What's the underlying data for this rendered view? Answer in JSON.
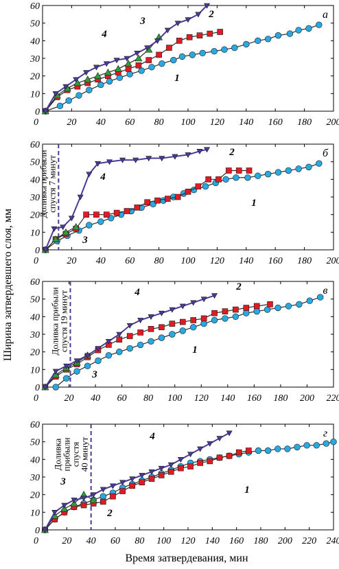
{
  "figure": {
    "ylabel": "Ширина затвердевшего слоя, мм",
    "xlabel": "Время затвердевания, мин"
  },
  "colors": {
    "s1": "#29a9e1",
    "s2": "#e01b24",
    "s3": "#2e9e3a",
    "s4": "#4a3a9a",
    "dash": "#4a3a9a"
  },
  "chart_data": [
    {
      "type": "line",
      "panel": "а",
      "xlim": [
        0,
        200
      ],
      "ylim": [
        0,
        60
      ],
      "xticks": [
        0,
        20,
        40,
        60,
        80,
        100,
        120,
        140,
        160,
        180,
        200
      ],
      "yticks": [
        0,
        10,
        20,
        30,
        40,
        50,
        60
      ],
      "series": [
        {
          "name": "1",
          "x": [
            2,
            12,
            18,
            25,
            32,
            40,
            46,
            53,
            60,
            68,
            75,
            82,
            90,
            96,
            103,
            110,
            118,
            125,
            132,
            140,
            148,
            155,
            162,
            170,
            176,
            183,
            190
          ],
          "y": [
            0,
            3,
            6,
            9,
            12,
            15,
            17,
            19,
            21,
            23,
            25,
            27,
            29,
            31,
            32,
            33,
            34,
            35,
            36,
            38,
            40,
            41,
            43,
            44,
            46,
            47,
            49
          ]
        },
        {
          "name": "2",
          "x": [
            2,
            10,
            17,
            24,
            31,
            38,
            45,
            52,
            59,
            66,
            73,
            80,
            87,
            94,
            101,
            108,
            115,
            122
          ],
          "y": [
            0,
            8,
            12,
            14,
            16,
            18,
            20,
            22,
            24,
            26,
            29,
            32,
            36,
            40,
            42,
            43,
            44,
            45
          ]
        },
        {
          "name": "3",
          "x": [
            2,
            10,
            17,
            24,
            31,
            38,
            45,
            52,
            59,
            66,
            73,
            80
          ],
          "y": [
            0,
            9,
            13,
            16,
            18,
            20,
            22,
            24,
            27,
            30,
            35,
            42
          ]
        },
        {
          "name": "4",
          "x": [
            2,
            9,
            16,
            23,
            30,
            37,
            44,
            51,
            58,
            65,
            72,
            79,
            86,
            93,
            100,
            107,
            113
          ],
          "y": [
            0,
            10,
            14,
            18,
            22,
            25,
            27,
            29,
            30,
            33,
            36,
            40,
            46,
            50,
            52,
            55,
            60
          ]
        }
      ]
    },
    {
      "type": "line",
      "panel": "б",
      "xlim": [
        0,
        200
      ],
      "ylim": [
        0,
        60
      ],
      "xticks": [
        0,
        20,
        40,
        60,
        80,
        100,
        120,
        140,
        160,
        180,
        200
      ],
      "yticks": [
        0,
        10,
        20,
        30,
        40,
        50,
        60
      ],
      "annotation": {
        "lines": [
          "Доливка прибыли",
          "спустя 7 минут"
        ],
        "x": 11
      },
      "series": [
        {
          "name": "1",
          "x": [
            2,
            10,
            17,
            25,
            32,
            40,
            47,
            54,
            61,
            68,
            76,
            83,
            90,
            97,
            104,
            112,
            119,
            126,
            133,
            141,
            148,
            155,
            162,
            169,
            176,
            183,
            190
          ],
          "y": [
            0,
            5,
            8,
            11,
            14,
            16,
            18,
            20,
            22,
            24,
            26,
            28,
            30,
            32,
            34,
            36,
            38,
            40,
            41,
            41,
            42,
            43,
            44,
            45,
            46,
            47,
            49
          ]
        },
        {
          "name": "2",
          "x": [
            2,
            9,
            16,
            23,
            30,
            37,
            44,
            51,
            58,
            65,
            72,
            79,
            86,
            93,
            100,
            107,
            114,
            121,
            128,
            135,
            142
          ],
          "y": [
            0,
            6,
            9,
            12,
            20,
            20,
            20,
            21,
            22,
            24,
            27,
            28,
            29,
            30,
            33,
            36,
            40,
            40,
            45,
            45,
            45
          ]
        },
        {
          "name": "3",
          "x": [
            2,
            9,
            16,
            23
          ],
          "y": [
            0,
            6,
            10,
            13
          ]
        },
        {
          "name": "4",
          "x": [
            2,
            8,
            14,
            20,
            26,
            32,
            38,
            46,
            55,
            64,
            73,
            82,
            91,
            100,
            108,
            113
          ],
          "y": [
            0,
            12,
            13,
            18,
            30,
            43,
            49,
            50,
            51,
            51,
            52,
            52,
            53,
            54,
            56,
            57
          ]
        }
      ]
    },
    {
      "type": "line",
      "panel": "в",
      "xlim": [
        0,
        220
      ],
      "ylim": [
        0,
        60
      ],
      "xticks": [
        0,
        20,
        40,
        60,
        80,
        100,
        120,
        140,
        160,
        180,
        200,
        220
      ],
      "yticks": [
        0,
        10,
        20,
        30,
        40,
        50,
        60
      ],
      "annotation": {
        "lines": [
          "Доливка прибыли",
          "спустя 19 минут"
        ],
        "x": 21
      },
      "series": [
        {
          "name": "1",
          "x": [
            10,
            18,
            26,
            34,
            42,
            50,
            58,
            66,
            74,
            82,
            90,
            98,
            106,
            114,
            122,
            130,
            138,
            146,
            154,
            162,
            170,
            178,
            186,
            194,
            202,
            210
          ],
          "y": [
            0,
            5,
            9,
            12,
            15,
            18,
            20,
            22,
            24,
            26,
            28,
            30,
            32,
            34,
            36,
            38,
            39,
            40,
            42,
            43,
            44,
            45,
            46,
            47,
            49,
            51
          ]
        },
        {
          "name": "2",
          "x": [
            2,
            10,
            18,
            26,
            34,
            42,
            50,
            58,
            66,
            74,
            82,
            90,
            98,
            106,
            114,
            122,
            130,
            138,
            146,
            154,
            162,
            172
          ],
          "y": [
            0,
            6,
            10,
            13,
            17,
            21,
            24,
            27,
            29,
            31,
            33,
            34,
            36,
            37,
            38,
            39,
            42,
            43,
            44,
            45,
            46,
            47
          ]
        },
        {
          "name": "3",
          "x": [
            2,
            10,
            18,
            26,
            34
          ],
          "y": [
            0,
            7,
            11,
            14,
            18
          ]
        },
        {
          "name": "4",
          "x": [
            2,
            10,
            18,
            26,
            34,
            42,
            50,
            58,
            66,
            74,
            82,
            90,
            98,
            106,
            114,
            122,
            130
          ],
          "y": [
            0,
            9,
            12,
            15,
            18,
            22,
            26,
            30,
            35,
            38,
            40,
            42,
            44,
            46,
            48,
            50,
            52
          ]
        }
      ]
    },
    {
      "type": "line",
      "panel": "г",
      "xlim": [
        0,
        240
      ],
      "ylim": [
        0,
        60
      ],
      "xticks": [
        0,
        20,
        40,
        60,
        80,
        100,
        120,
        140,
        160,
        180,
        200,
        220,
        240
      ],
      "yticks": [
        0,
        10,
        20,
        30,
        40,
        50,
        60
      ],
      "annotation": {
        "lines": [
          "Доливка",
          "прибыли",
          "спустя",
          "40 минут"
        ],
        "x": 40
      },
      "series": [
        {
          "name": "1",
          "x": [
            2,
            10,
            18,
            26,
            34,
            42,
            50,
            58,
            66,
            74,
            82,
            90,
            98,
            106,
            114,
            122,
            130,
            138,
            146,
            154,
            162,
            170,
            178,
            186,
            194,
            202,
            210,
            218,
            226,
            234,
            240
          ],
          "y": [
            0,
            6,
            10,
            13,
            15,
            17,
            19,
            21,
            24,
            26,
            28,
            30,
            32,
            34,
            36,
            38,
            39,
            40,
            41,
            42,
            43,
            44,
            45,
            45,
            46,
            46,
            47,
            48,
            48,
            49,
            50
          ]
        },
        {
          "name": "2",
          "x": [
            2,
            10,
            18,
            26,
            34,
            42,
            50,
            58,
            66,
            74,
            82,
            90,
            98,
            106,
            114,
            122,
            130,
            138,
            146,
            154,
            162,
            170
          ],
          "y": [
            0,
            6,
            10,
            13,
            14,
            15,
            16,
            19,
            22,
            25,
            27,
            29,
            31,
            33,
            35,
            36,
            38,
            39,
            41,
            42,
            44,
            45
          ]
        },
        {
          "name": "3",
          "x": [
            2,
            10,
            18,
            26,
            34,
            42
          ],
          "y": [
            0,
            8,
            12,
            15,
            20,
            17
          ]
        },
        {
          "name": "4",
          "x": [
            2,
            10,
            18,
            26,
            34,
            42,
            50,
            58,
            66,
            74,
            82,
            90,
            98,
            106,
            114,
            122,
            130,
            138,
            146,
            154
          ],
          "y": [
            0,
            10,
            14,
            17,
            18,
            20,
            23,
            25,
            27,
            29,
            31,
            33,
            35,
            37,
            40,
            43,
            46,
            49,
            52,
            55
          ]
        }
      ]
    }
  ]
}
